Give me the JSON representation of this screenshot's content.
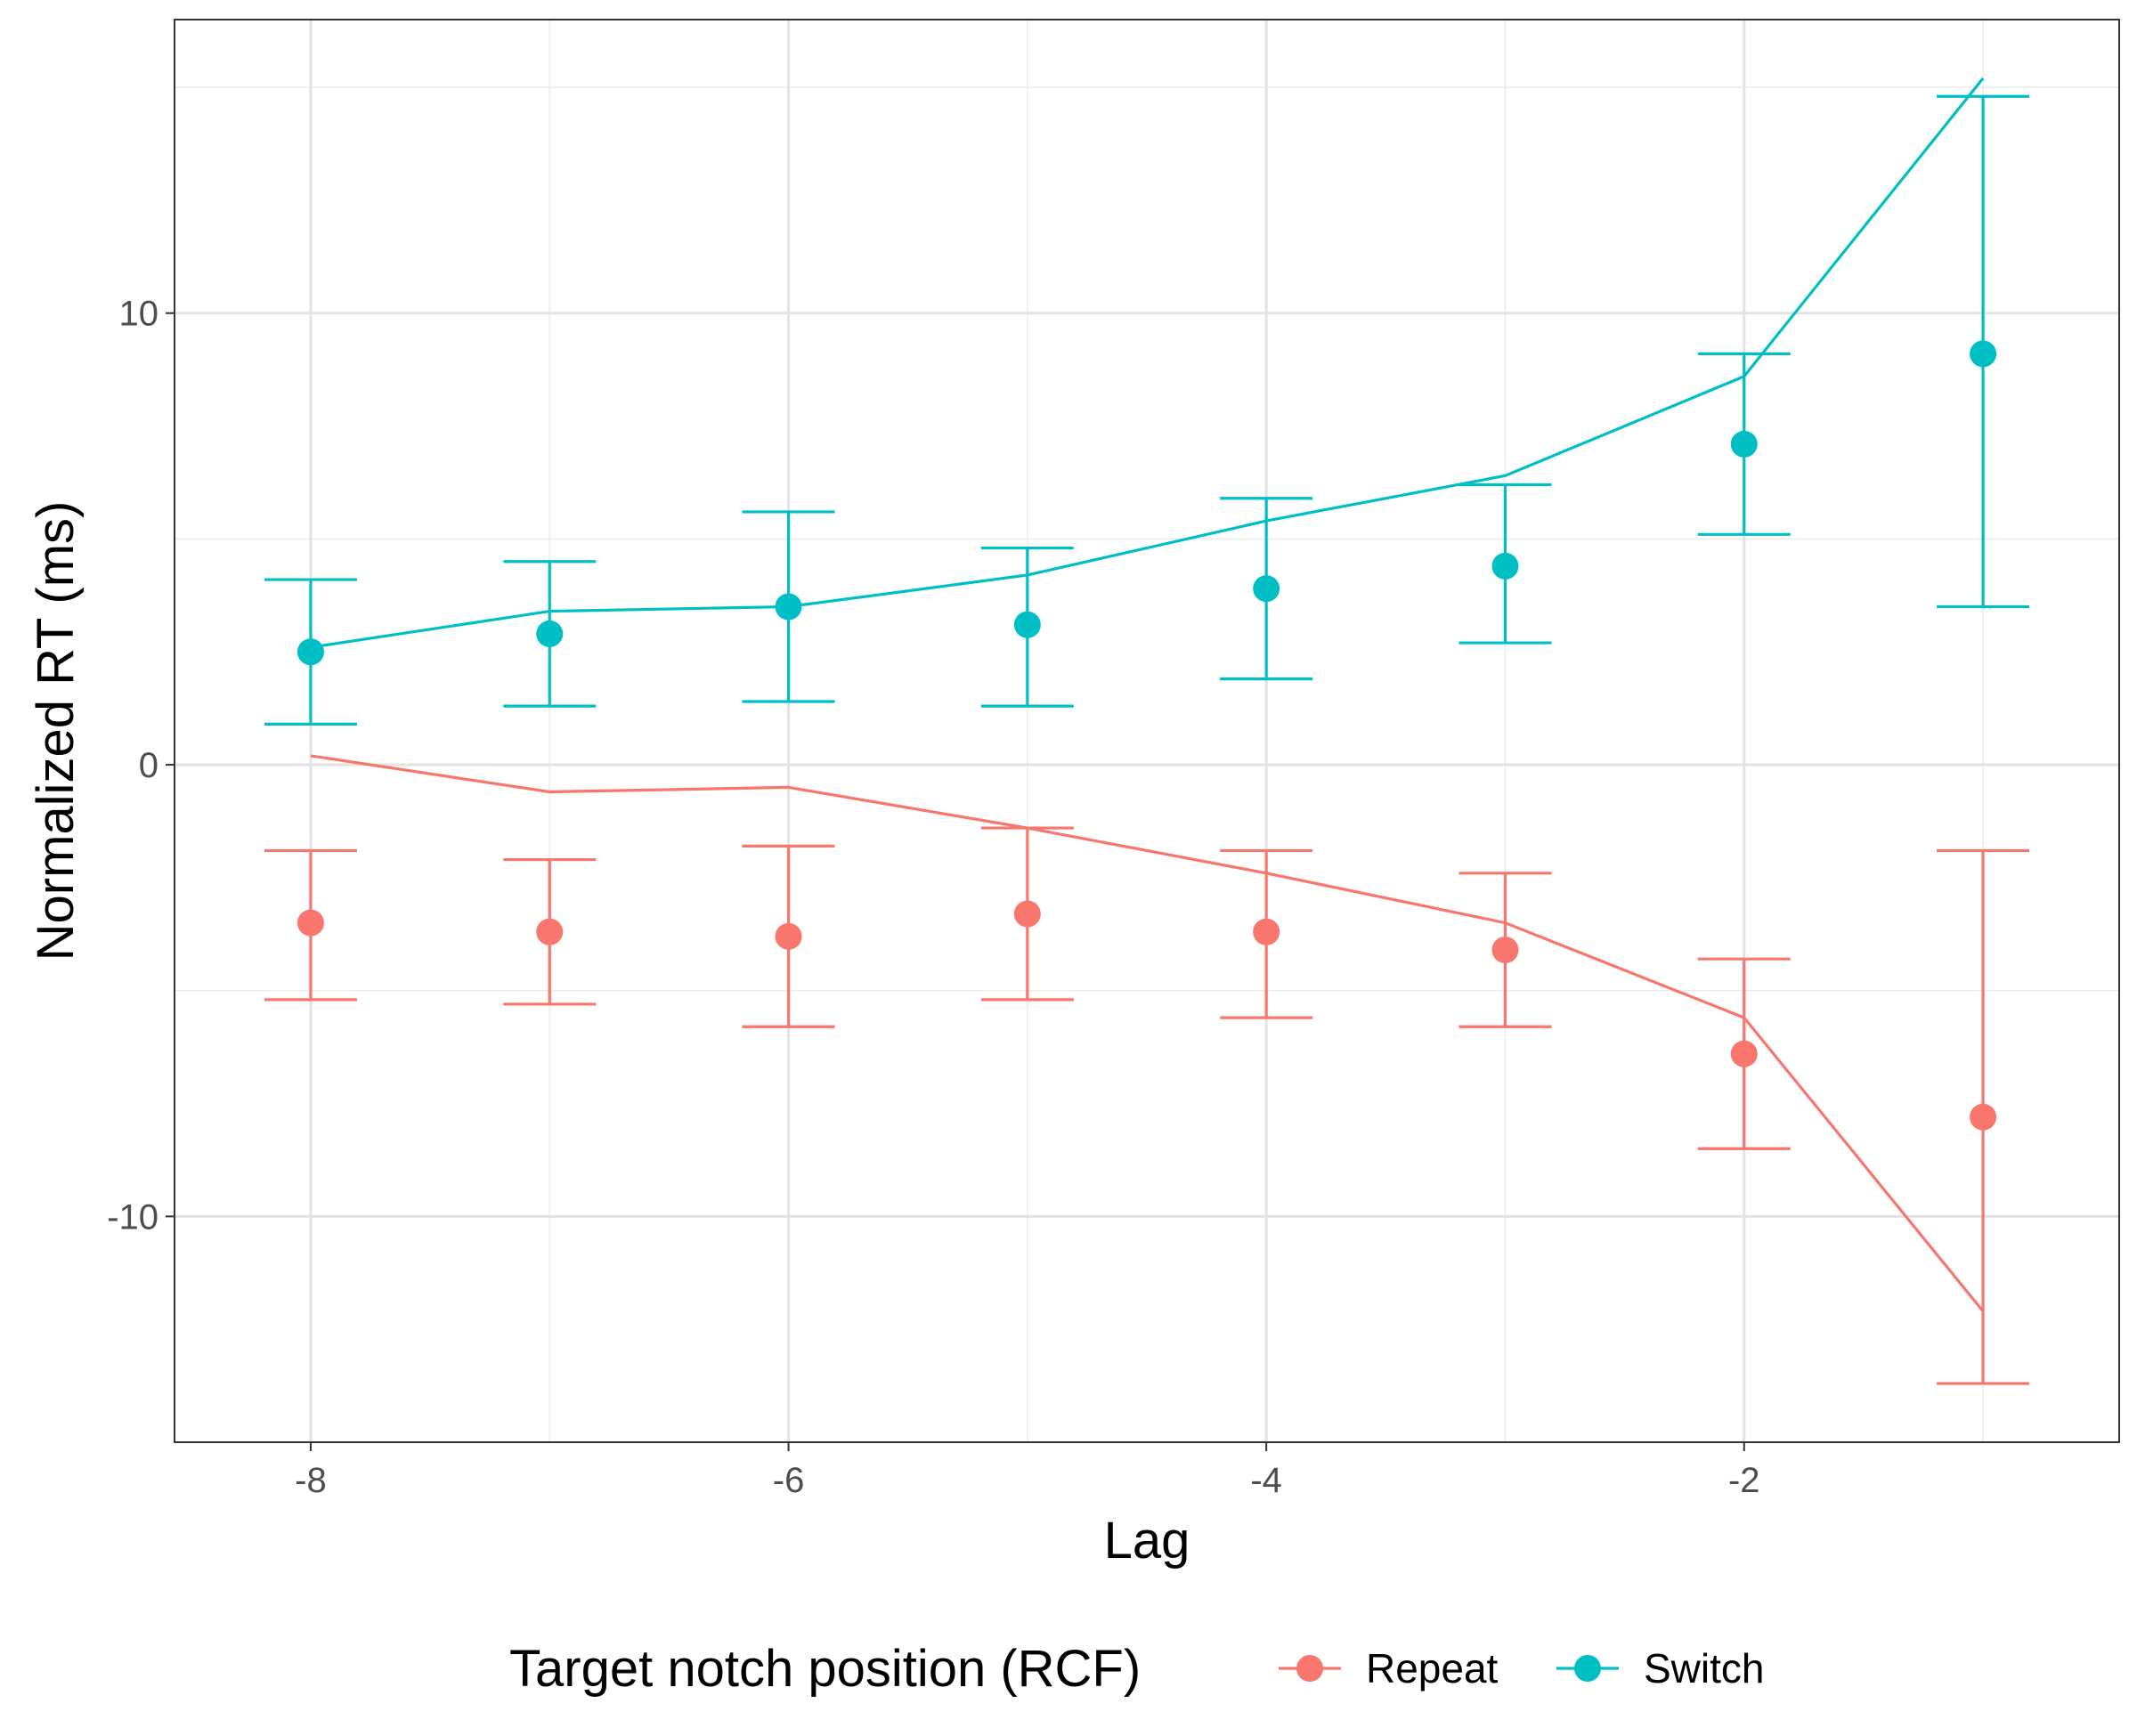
{
  "chart_data": {
    "type": "line",
    "xlabel": "Lag",
    "ylabel": "Normalized RT (ms)",
    "xlim": [
      -8.57,
      -0.43
    ],
    "ylim": [
      -15,
      16.5
    ],
    "x_ticks": [
      -8,
      -6,
      -4,
      -2
    ],
    "x_tick_labels": [
      "-8",
      "-6",
      "-4",
      "-2"
    ],
    "y_ticks": [
      -10,
      0,
      10
    ],
    "y_tick_labels": [
      "-10",
      "0",
      "10"
    ],
    "grid": true,
    "legend": {
      "title": "Target notch position (RCF)",
      "position": "bottom",
      "entries": [
        "Repeat",
        "Switch"
      ]
    },
    "x": [
      -8,
      -7,
      -6,
      -5,
      -4,
      -3,
      -2,
      -1
    ],
    "series": [
      {
        "name": "Repeat",
        "color": "#F8766D",
        "points": [
          -3.5,
          -3.7,
          -3.8,
          -3.3,
          -3.7,
          -4.1,
          -6.4,
          -7.8
        ],
        "ci_low": [
          -5.2,
          -5.3,
          -5.8,
          -5.2,
          -5.6,
          -5.8,
          -8.5,
          -13.7
        ],
        "ci_high": [
          -1.9,
          -2.1,
          -1.8,
          -1.4,
          -1.9,
          -2.4,
          -4.3,
          -1.9
        ],
        "fit": [
          0.2,
          -0.6,
          -0.5,
          -1.4,
          -2.4,
          -3.5,
          -5.6,
          -12.1
        ]
      },
      {
        "name": "Switch",
        "color": "#00BFC4",
        "points": [
          2.5,
          2.9,
          3.5,
          3.1,
          3.9,
          4.4,
          7.1,
          9.1
        ],
        "ci_low": [
          0.9,
          1.3,
          1.4,
          1.3,
          1.9,
          2.7,
          5.1,
          3.5
        ],
        "ci_high": [
          4.1,
          4.5,
          5.6,
          4.8,
          5.9,
          6.2,
          9.1,
          14.8
        ],
        "fit": [
          2.6,
          3.4,
          3.5,
          4.2,
          5.4,
          6.4,
          8.6,
          15.2
        ]
      }
    ]
  }
}
